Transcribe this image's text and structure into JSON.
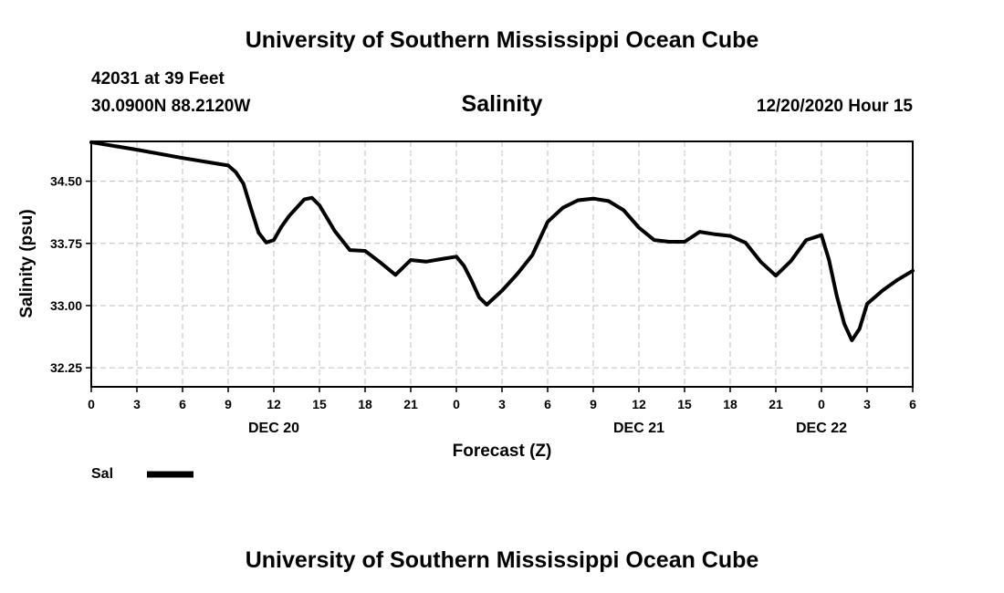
{
  "page": {
    "top_title": "University of Southern Mississippi Ocean Cube",
    "bottom_title": "University of Southern Mississippi Ocean Cube",
    "station": "42031 at 39 Feet",
    "coords": "30.0900N 88.2120W",
    "datetime": "12/20/2020 Hour 15"
  },
  "chart_data": {
    "type": "line",
    "title": "Salinity",
    "xlabel": "Forecast (Z)",
    "ylabel": "Salinity (psu)",
    "x_unit": "forecast hour from 00Z Dec 20",
    "xlim": [
      0,
      54
    ],
    "ylim": [
      32.02,
      34.98
    ],
    "x_ticks": [
      0,
      3,
      6,
      9,
      12,
      15,
      18,
      21,
      24,
      27,
      30,
      33,
      36,
      39,
      42,
      45,
      48,
      51,
      54
    ],
    "x_tick_labels": [
      "0",
      "3",
      "6",
      "9",
      "12",
      "15",
      "18",
      "21",
      "0",
      "3",
      "6",
      "9",
      "12",
      "15",
      "18",
      "21",
      "0",
      "3",
      "6"
    ],
    "y_ticks": [
      32.25,
      33.0,
      33.75,
      34.5
    ],
    "y_tick_labels": [
      "32.25",
      "33.00",
      "33.75",
      "34.50"
    ],
    "date_labels": [
      {
        "x": 12,
        "label": "DEC 20"
      },
      {
        "x": 36,
        "label": "DEC 21"
      },
      {
        "x": 48,
        "label": "DEC 22"
      }
    ],
    "grid": true,
    "legend_position": "bottom-left",
    "series": [
      {
        "name": "Sal",
        "color": "#000000",
        "x": [
          0,
          3,
          6,
          9,
          9.5,
          10,
          10.5,
          11,
          11.5,
          12,
          12.5,
          13,
          14,
          14.5,
          15,
          16,
          17,
          18,
          19,
          20,
          21,
          22,
          23,
          24,
          24.5,
          25,
          25.5,
          26,
          27,
          28,
          29,
          30,
          31,
          32,
          33,
          34,
          35,
          36,
          37,
          38,
          39,
          40,
          41,
          42,
          43,
          44,
          45,
          46,
          47,
          48,
          48.5,
          49,
          49.5,
          50,
          50.5,
          51,
          52,
          53,
          54
        ],
        "y": [
          34.97,
          34.88,
          34.78,
          34.69,
          34.61,
          34.47,
          34.17,
          33.88,
          33.76,
          33.79,
          33.95,
          34.08,
          34.28,
          34.3,
          34.21,
          33.9,
          33.67,
          33.66,
          33.52,
          33.37,
          33.55,
          33.53,
          33.56,
          33.59,
          33.48,
          33.3,
          33.1,
          33.01,
          33.18,
          33.38,
          33.61,
          34.01,
          34.18,
          34.27,
          34.29,
          34.26,
          34.15,
          33.94,
          33.79,
          33.77,
          33.77,
          33.89,
          33.86,
          33.84,
          33.76,
          33.53,
          33.36,
          33.54,
          33.79,
          33.85,
          33.55,
          33.12,
          32.78,
          32.58,
          32.72,
          33.02,
          33.18,
          33.31,
          33.42
        ]
      }
    ]
  }
}
